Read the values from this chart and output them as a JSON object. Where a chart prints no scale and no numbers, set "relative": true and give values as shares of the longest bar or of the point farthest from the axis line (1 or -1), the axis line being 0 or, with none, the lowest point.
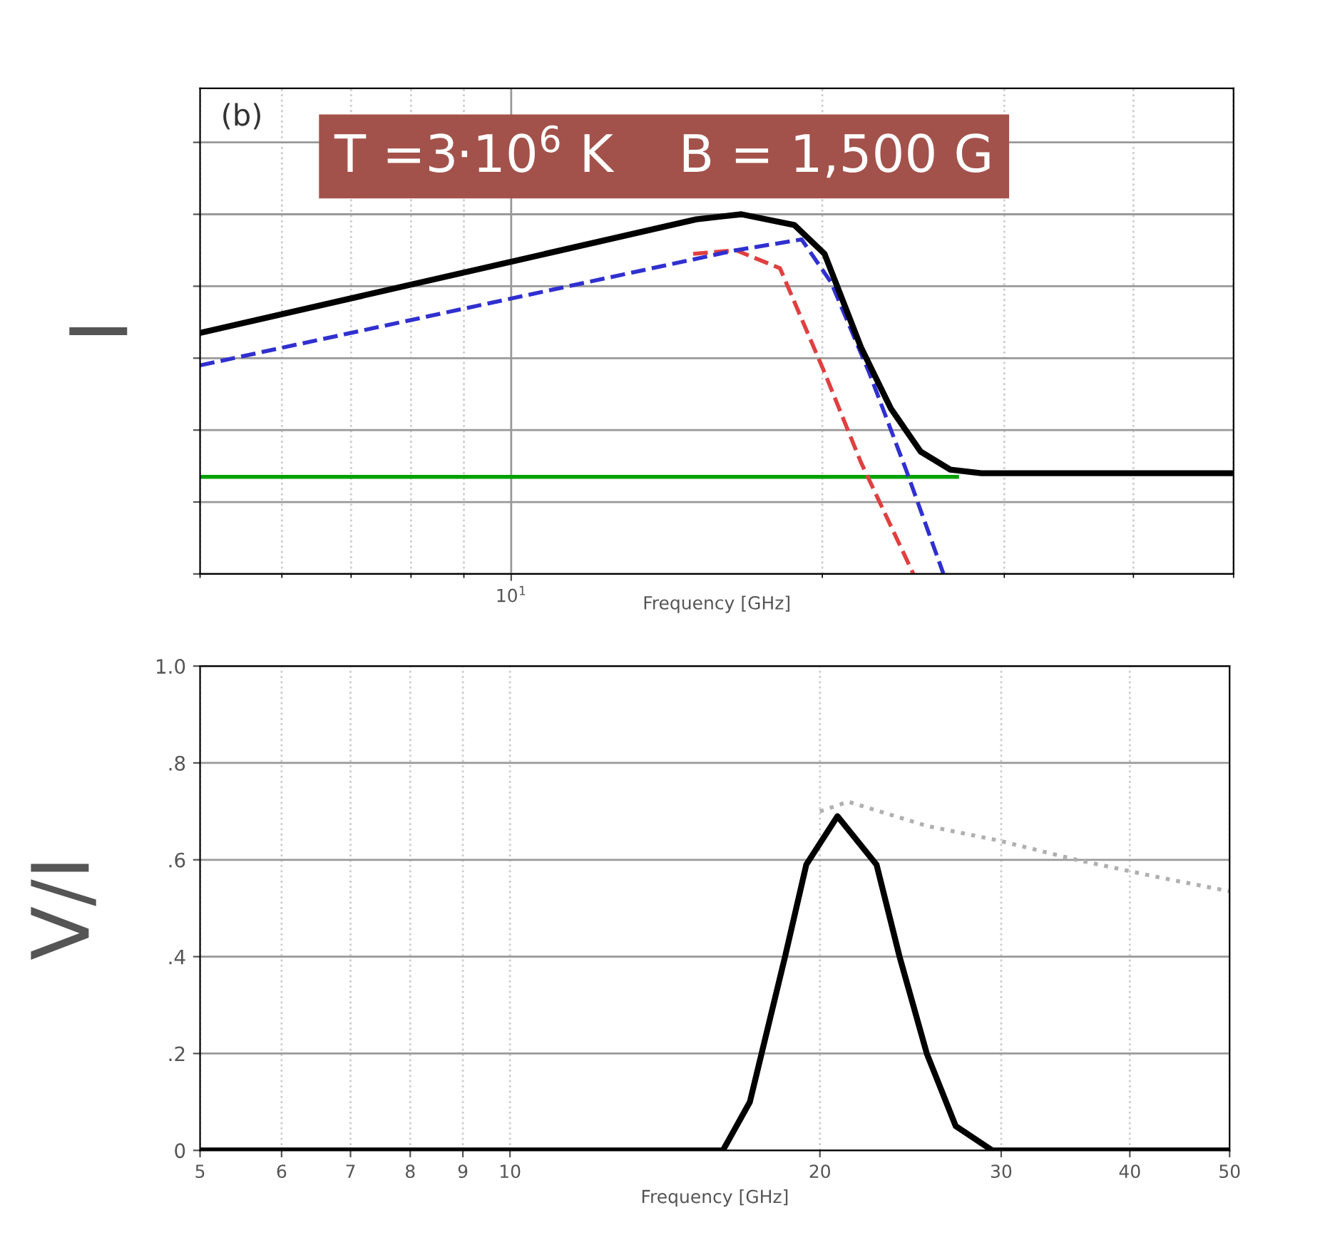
{
  "chart_data": [
    {
      "type": "line",
      "xlabel": "Frequency [GHz]",
      "ylabel": "I",
      "log": "x",
      "relative": true,
      "xlim": [
        5,
        50
      ],
      "tick_labels": "x",
      "grid": true,
      "annotations": [
        "(b)",
        "T =3·10$^{6}$ K    B = 1,500 G",
        "10$^{1}$"
      ],
      "series": [
        {
          "color": "#00a000",
          "line_style": "solid",
          "x": [
            5,
            27
          ],
          "values": [
            0.27,
            0.27
          ]
        },
        {
          "color": "#e04040",
          "line_style": "dashed",
          "x": [
            15,
            16.5,
            18.2,
            20.1,
            21.8,
            24.5
          ],
          "values": [
            0.89,
            0.9,
            0.85,
            0.56,
            0.31,
            0.0
          ]
        },
        {
          "color": "#3030d0",
          "line_style": "dashed",
          "x": [
            5,
            16.5,
            19.1,
            20.4,
            22.2,
            24.1,
            26.2
          ],
          "values": [
            0.58,
            0.9,
            0.93,
            0.81,
            0.56,
            0.29,
            0.0
          ]
        },
        {
          "color": "#000000",
          "line_style": "solid",
          "x": [
            5,
            15.1,
            16.7,
            18.8,
            20.1,
            21.8,
            23.3,
            24.9,
            26.6,
            28.5,
            50
          ],
          "values": [
            0.67,
            0.986,
            1.0,
            0.97,
            0.89,
            0.63,
            0.46,
            0.34,
            0.29,
            0.28,
            0.28
          ]
        }
      ]
    },
    {
      "type": "line",
      "xlabel": "Frequency [GHz]",
      "ylabel": "V/I",
      "log": "x",
      "xlim": [
        5,
        50
      ],
      "xticks": [
        5,
        6,
        7,
        8,
        9,
        10,
        20,
        30,
        40,
        50
      ],
      "ylim": [
        0,
        1.0
      ],
      "yticks": [
        {
          "value": 0,
          "label": "0"
        },
        {
          "value": 0.2,
          "label": ".2"
        },
        {
          "value": 0.4,
          "label": ".4"
        },
        {
          "value": 0.6,
          "label": ".6"
        },
        {
          "value": 0.8,
          "label": ".8"
        },
        {
          "value": 1.0,
          "label": "1.0"
        }
      ],
      "grid": true,
      "series": [
        {
          "color": "#b0b0b0",
          "line_style": "dotted",
          "x": [
            20,
            21.3,
            25.4,
            29.8,
            35.5,
            42.4,
            50
          ],
          "values": [
            0.7,
            0.72,
            0.67,
            0.64,
            0.6,
            0.565,
            0.535
          ]
        },
        {
          "color": "#000000",
          "line_style": "solid",
          "x": [
            5,
            16.1,
            17.1,
            18.5,
            19.4,
            20.8,
            22.7,
            23.9,
            25.4,
            27.1,
            29.4,
            50
          ],
          "values": [
            0,
            0,
            0.1,
            0.4,
            0.59,
            0.69,
            0.59,
            0.4,
            0.2,
            0.05,
            0.0,
            0
          ]
        }
      ]
    }
  ]
}
